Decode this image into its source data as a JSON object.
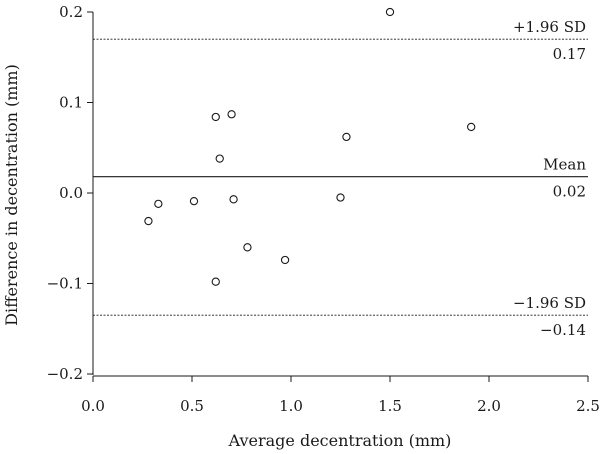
{
  "chart_data": {
    "type": "scatter",
    "title": "",
    "xlabel": "Average decentration (mm)",
    "ylabel": "Difference in decentration (mm)",
    "xlim": [
      0.0,
      2.5
    ],
    "ylim": [
      -0.2,
      0.2
    ],
    "x_ticks": [
      0.0,
      0.5,
      1.0,
      1.5,
      2.0,
      2.5
    ],
    "x_tick_labels": [
      "0.0",
      "0.5",
      "1.0",
      "1.5",
      "2.0",
      "2.5"
    ],
    "y_ticks": [
      -0.2,
      -0.1,
      0.0,
      0.1,
      0.2
    ],
    "y_tick_labels": [
      "−0.2",
      "−0.1",
      "0.0",
      "0.1",
      "0.2"
    ],
    "grid": false,
    "legend": "none",
    "points": [
      {
        "x": 0.28,
        "y": -0.031
      },
      {
        "x": 0.33,
        "y": -0.012
      },
      {
        "x": 0.51,
        "y": -0.009
      },
      {
        "x": 0.62,
        "y": 0.084
      },
      {
        "x": 0.62,
        "y": -0.098
      },
      {
        "x": 0.64,
        "y": 0.038
      },
      {
        "x": 0.7,
        "y": 0.087
      },
      {
        "x": 0.71,
        "y": -0.007
      },
      {
        "x": 0.78,
        "y": -0.06
      },
      {
        "x": 0.97,
        "y": -0.074
      },
      {
        "x": 1.25,
        "y": -0.005
      },
      {
        "x": 1.28,
        "y": 0.062
      },
      {
        "x": 1.5,
        "y": 0.2
      },
      {
        "x": 1.91,
        "y": 0.073
      }
    ],
    "reference_lines": [
      {
        "y": 0.17,
        "style": "dashed",
        "label": "+1.96 SD",
        "value_label": "0.17"
      },
      {
        "y": 0.018,
        "style": "solid",
        "label": "Mean",
        "value_label": "0.02"
      },
      {
        "y": -0.135,
        "style": "dashed",
        "label": "−1.96 SD",
        "value_label": "−0.14"
      }
    ]
  }
}
